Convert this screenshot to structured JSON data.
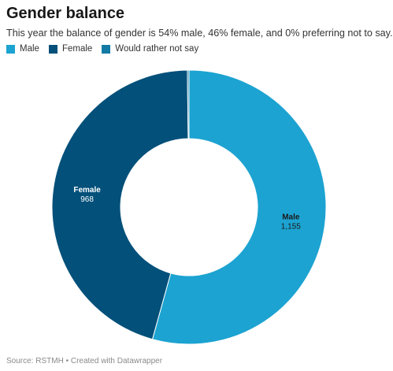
{
  "header": {
    "title": "Gender balance",
    "subtitle": "This year the balance of gender is 54% male, 46% female, and 0% preferring not to say."
  },
  "chart_data": {
    "type": "pie",
    "style": "donut",
    "title": "Gender balance",
    "subtitle": "This year the balance of gender is 54% male, 46% female, and 0% preferring not to say.",
    "legend_position": "top-left",
    "slices": [
      {
        "name": "Male",
        "value": 1155,
        "label": "1,155",
        "color": "#1ca3d1",
        "text_color": "#1a1a1a",
        "show_label": true
      },
      {
        "name": "Female",
        "value": 968,
        "label": "968",
        "color": "#03507a",
        "text_color": "#ffffff",
        "show_label": true
      },
      {
        "name": "Would rather not say",
        "value": 4,
        "label": "",
        "color": "#137aa6",
        "text_color": "#ffffff",
        "show_label": false
      }
    ]
  },
  "footer": {
    "source": "Source: RSTMH • Created with Datawrapper"
  }
}
